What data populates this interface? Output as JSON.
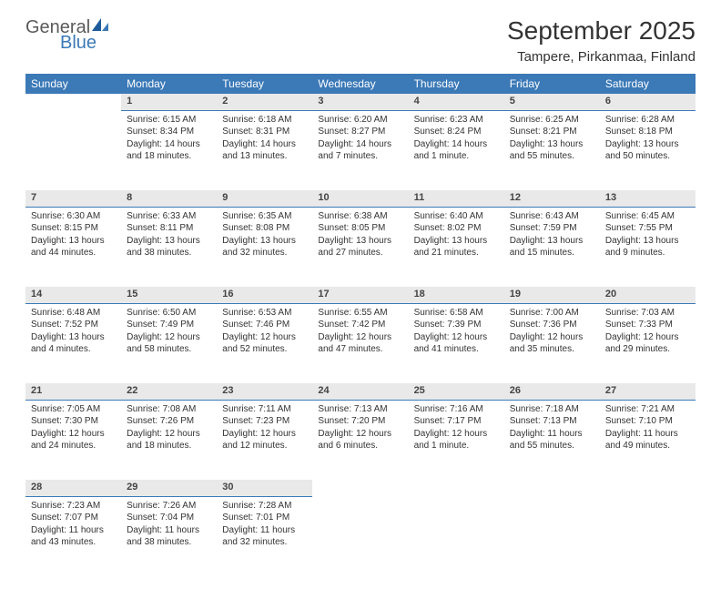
{
  "brand": {
    "name1": "General",
    "name2": "Blue"
  },
  "title": "September 2025",
  "location": "Tampere, Pirkanmaa, Finland",
  "colors": {
    "header_bg": "#3b79b7",
    "header_fg": "#ffffff",
    "daynum_bg": "#e9e9e9",
    "daynum_border": "#3b79b7",
    "text": "#333333",
    "logo_gray": "#5a5a5a",
    "logo_blue": "#3b79b7"
  },
  "day_headers": [
    "Sunday",
    "Monday",
    "Tuesday",
    "Wednesday",
    "Thursday",
    "Friday",
    "Saturday"
  ],
  "weeks": [
    [
      null,
      {
        "n": "1",
        "sr": "Sunrise: 6:15 AM",
        "ss": "Sunset: 8:34 PM",
        "d1": "Daylight: 14 hours",
        "d2": "and 18 minutes."
      },
      {
        "n": "2",
        "sr": "Sunrise: 6:18 AM",
        "ss": "Sunset: 8:31 PM",
        "d1": "Daylight: 14 hours",
        "d2": "and 13 minutes."
      },
      {
        "n": "3",
        "sr": "Sunrise: 6:20 AM",
        "ss": "Sunset: 8:27 PM",
        "d1": "Daylight: 14 hours",
        "d2": "and 7 minutes."
      },
      {
        "n": "4",
        "sr": "Sunrise: 6:23 AM",
        "ss": "Sunset: 8:24 PM",
        "d1": "Daylight: 14 hours",
        "d2": "and 1 minute."
      },
      {
        "n": "5",
        "sr": "Sunrise: 6:25 AM",
        "ss": "Sunset: 8:21 PM",
        "d1": "Daylight: 13 hours",
        "d2": "and 55 minutes."
      },
      {
        "n": "6",
        "sr": "Sunrise: 6:28 AM",
        "ss": "Sunset: 8:18 PM",
        "d1": "Daylight: 13 hours",
        "d2": "and 50 minutes."
      }
    ],
    [
      {
        "n": "7",
        "sr": "Sunrise: 6:30 AM",
        "ss": "Sunset: 8:15 PM",
        "d1": "Daylight: 13 hours",
        "d2": "and 44 minutes."
      },
      {
        "n": "8",
        "sr": "Sunrise: 6:33 AM",
        "ss": "Sunset: 8:11 PM",
        "d1": "Daylight: 13 hours",
        "d2": "and 38 minutes."
      },
      {
        "n": "9",
        "sr": "Sunrise: 6:35 AM",
        "ss": "Sunset: 8:08 PM",
        "d1": "Daylight: 13 hours",
        "d2": "and 32 minutes."
      },
      {
        "n": "10",
        "sr": "Sunrise: 6:38 AM",
        "ss": "Sunset: 8:05 PM",
        "d1": "Daylight: 13 hours",
        "d2": "and 27 minutes."
      },
      {
        "n": "11",
        "sr": "Sunrise: 6:40 AM",
        "ss": "Sunset: 8:02 PM",
        "d1": "Daylight: 13 hours",
        "d2": "and 21 minutes."
      },
      {
        "n": "12",
        "sr": "Sunrise: 6:43 AM",
        "ss": "Sunset: 7:59 PM",
        "d1": "Daylight: 13 hours",
        "d2": "and 15 minutes."
      },
      {
        "n": "13",
        "sr": "Sunrise: 6:45 AM",
        "ss": "Sunset: 7:55 PM",
        "d1": "Daylight: 13 hours",
        "d2": "and 9 minutes."
      }
    ],
    [
      {
        "n": "14",
        "sr": "Sunrise: 6:48 AM",
        "ss": "Sunset: 7:52 PM",
        "d1": "Daylight: 13 hours",
        "d2": "and 4 minutes."
      },
      {
        "n": "15",
        "sr": "Sunrise: 6:50 AM",
        "ss": "Sunset: 7:49 PM",
        "d1": "Daylight: 12 hours",
        "d2": "and 58 minutes."
      },
      {
        "n": "16",
        "sr": "Sunrise: 6:53 AM",
        "ss": "Sunset: 7:46 PM",
        "d1": "Daylight: 12 hours",
        "d2": "and 52 minutes."
      },
      {
        "n": "17",
        "sr": "Sunrise: 6:55 AM",
        "ss": "Sunset: 7:42 PM",
        "d1": "Daylight: 12 hours",
        "d2": "and 47 minutes."
      },
      {
        "n": "18",
        "sr": "Sunrise: 6:58 AM",
        "ss": "Sunset: 7:39 PM",
        "d1": "Daylight: 12 hours",
        "d2": "and 41 minutes."
      },
      {
        "n": "19",
        "sr": "Sunrise: 7:00 AM",
        "ss": "Sunset: 7:36 PM",
        "d1": "Daylight: 12 hours",
        "d2": "and 35 minutes."
      },
      {
        "n": "20",
        "sr": "Sunrise: 7:03 AM",
        "ss": "Sunset: 7:33 PM",
        "d1": "Daylight: 12 hours",
        "d2": "and 29 minutes."
      }
    ],
    [
      {
        "n": "21",
        "sr": "Sunrise: 7:05 AM",
        "ss": "Sunset: 7:30 PM",
        "d1": "Daylight: 12 hours",
        "d2": "and 24 minutes."
      },
      {
        "n": "22",
        "sr": "Sunrise: 7:08 AM",
        "ss": "Sunset: 7:26 PM",
        "d1": "Daylight: 12 hours",
        "d2": "and 18 minutes."
      },
      {
        "n": "23",
        "sr": "Sunrise: 7:11 AM",
        "ss": "Sunset: 7:23 PM",
        "d1": "Daylight: 12 hours",
        "d2": "and 12 minutes."
      },
      {
        "n": "24",
        "sr": "Sunrise: 7:13 AM",
        "ss": "Sunset: 7:20 PM",
        "d1": "Daylight: 12 hours",
        "d2": "and 6 minutes."
      },
      {
        "n": "25",
        "sr": "Sunrise: 7:16 AM",
        "ss": "Sunset: 7:17 PM",
        "d1": "Daylight: 12 hours",
        "d2": "and 1 minute."
      },
      {
        "n": "26",
        "sr": "Sunrise: 7:18 AM",
        "ss": "Sunset: 7:13 PM",
        "d1": "Daylight: 11 hours",
        "d2": "and 55 minutes."
      },
      {
        "n": "27",
        "sr": "Sunrise: 7:21 AM",
        "ss": "Sunset: 7:10 PM",
        "d1": "Daylight: 11 hours",
        "d2": "and 49 minutes."
      }
    ],
    [
      {
        "n": "28",
        "sr": "Sunrise: 7:23 AM",
        "ss": "Sunset: 7:07 PM",
        "d1": "Daylight: 11 hours",
        "d2": "and 43 minutes."
      },
      {
        "n": "29",
        "sr": "Sunrise: 7:26 AM",
        "ss": "Sunset: 7:04 PM",
        "d1": "Daylight: 11 hours",
        "d2": "and 38 minutes."
      },
      {
        "n": "30",
        "sr": "Sunrise: 7:28 AM",
        "ss": "Sunset: 7:01 PM",
        "d1": "Daylight: 11 hours",
        "d2": "and 32 minutes."
      },
      null,
      null,
      null,
      null
    ]
  ]
}
